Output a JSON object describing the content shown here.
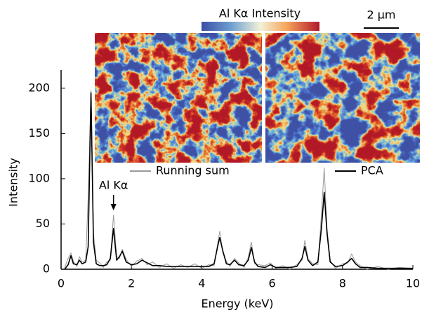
{
  "chart_data": {
    "type": "line",
    "xlabel": "Energy (keV)",
    "ylabel": "Intensity",
    "colorbar_label": "Al Kα Intensity",
    "scale_bar": "2 μm",
    "annotation": "Al Kα",
    "xlim": [
      0,
      10
    ],
    "xticks": [
      0,
      2,
      4,
      6,
      8,
      10
    ],
    "ylim": [
      0,
      220
    ],
    "yticks": [
      0,
      50,
      100,
      150,
      200
    ],
    "x": [
      0.1,
      0.2,
      0.28,
      0.35,
      0.45,
      0.52,
      0.6,
      0.7,
      0.77,
      0.85,
      0.92,
      1.0,
      1.1,
      1.2,
      1.3,
      1.4,
      1.49,
      1.58,
      1.66,
      1.74,
      1.85,
      2.0,
      2.15,
      2.3,
      2.45,
      2.6,
      2.8,
      3.0,
      3.2,
      3.4,
      3.6,
      3.8,
      4.0,
      4.2,
      4.35,
      4.45,
      4.51,
      4.6,
      4.7,
      4.8,
      4.93,
      5.05,
      5.2,
      5.32,
      5.41,
      5.5,
      5.6,
      5.8,
      5.95,
      6.1,
      6.3,
      6.5,
      6.7,
      6.85,
      6.93,
      7.02,
      7.15,
      7.3,
      7.4,
      7.48,
      7.56,
      7.65,
      7.8,
      8.0,
      8.15,
      8.26,
      8.37,
      8.5,
      8.7,
      9.0,
      9.3,
      9.6,
      10.0
    ],
    "series": [
      {
        "name": "Running sum",
        "color": "#9a9a9a",
        "values": [
          2,
          12,
          18,
          9,
          3,
          14,
          8,
          10,
          80,
          198,
          40,
          10,
          7,
          2,
          8,
          10,
          60,
          14,
          12,
          22,
          11,
          3,
          9,
          12,
          5,
          8,
          2,
          6,
          1,
          5,
          2,
          6,
          1,
          5,
          4,
          28,
          42,
          18,
          9,
          3,
          12,
          7,
          2,
          13,
          30,
          6,
          5,
          4,
          7,
          1,
          4,
          0,
          5,
          10,
          32,
          12,
          6,
          5,
          60,
          112,
          45,
          10,
          1,
          6,
          7,
          17,
          8,
          4,
          0,
          3,
          0,
          2,
          1
        ]
      },
      {
        "name": "PCA",
        "color": "#000000",
        "values": [
          0,
          5,
          15,
          6,
          5,
          10,
          6,
          8,
          25,
          195,
          30,
          6,
          4,
          4,
          5,
          12,
          45,
          10,
          14,
          20,
          8,
          5,
          6,
          10,
          7,
          4,
          4,
          3,
          3,
          3,
          3,
          3,
          3,
          3,
          6,
          25,
          35,
          20,
          6,
          5,
          10,
          5,
          4,
          10,
          24,
          8,
          3,
          2,
          5,
          2,
          2,
          2,
          3,
          12,
          25,
          10,
          4,
          8,
          45,
          85,
          40,
          8,
          3,
          4,
          8,
          12,
          6,
          2,
          2,
          1,
          1,
          1,
          1
        ]
      }
    ]
  }
}
